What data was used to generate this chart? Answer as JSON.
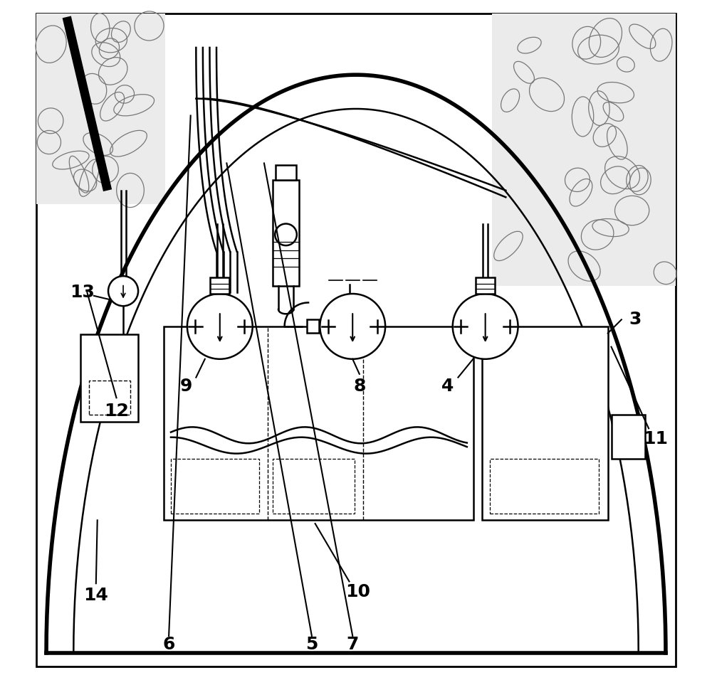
{
  "title": "",
  "bg_color": "#ffffff",
  "line_color": "#000000",
  "label_fontsize": 18,
  "label_fontweight": "bold",
  "lw_main": 1.8,
  "lw_thick": 3.5,
  "lw_tunnel": 4.0
}
